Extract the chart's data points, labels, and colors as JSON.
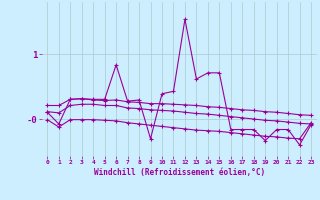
{
  "bg_color": "#cceeff",
  "grid_color": "#aacccc",
  "line_color": "#990099",
  "xlabel": "Windchill (Refroidissement éolien,°C)",
  "x": [
    0,
    1,
    2,
    3,
    4,
    5,
    6,
    7,
    8,
    9,
    10,
    11,
    12,
    13,
    14,
    15,
    16,
    17,
    18,
    19,
    20,
    21,
    22,
    23
  ],
  "s1": [
    0.06,
    -0.13,
    0.27,
    0.28,
    0.27,
    0.27,
    0.83,
    0.24,
    0.26,
    -0.37,
    0.36,
    0.4,
    1.57,
    0.6,
    0.7,
    0.7,
    -0.22,
    -0.22,
    -0.22,
    -0.4,
    -0.22,
    -0.22,
    -0.47,
    -0.14
  ],
  "s2": [
    0.17,
    0.17,
    0.27,
    0.28,
    0.26,
    0.25,
    0.26,
    0.23,
    0.22,
    0.2,
    0.2,
    0.19,
    0.18,
    0.17,
    0.15,
    0.14,
    0.12,
    0.1,
    0.09,
    0.07,
    0.06,
    0.04,
    0.02,
    0.01
  ],
  "s3": [
    0.07,
    0.05,
    0.17,
    0.19,
    0.19,
    0.17,
    0.17,
    0.13,
    0.12,
    0.1,
    0.09,
    0.08,
    0.06,
    0.04,
    0.03,
    0.01,
    -0.01,
    -0.03,
    -0.05,
    -0.07,
    -0.08,
    -0.1,
    -0.12,
    -0.13
  ],
  "s4": [
    -0.06,
    -0.18,
    -0.06,
    -0.06,
    -0.06,
    -0.07,
    -0.08,
    -0.11,
    -0.13,
    -0.15,
    -0.17,
    -0.19,
    -0.21,
    -0.23,
    -0.24,
    -0.25,
    -0.27,
    -0.29,
    -0.31,
    -0.33,
    -0.34,
    -0.36,
    -0.37,
    -0.11
  ],
  "ytick_vals": [
    1.0,
    -0.05
  ],
  "ytick_labels": [
    "1",
    "-0"
  ],
  "ylim": [
    -0.65,
    1.85
  ],
  "xlim": [
    -0.5,
    23.5
  ]
}
